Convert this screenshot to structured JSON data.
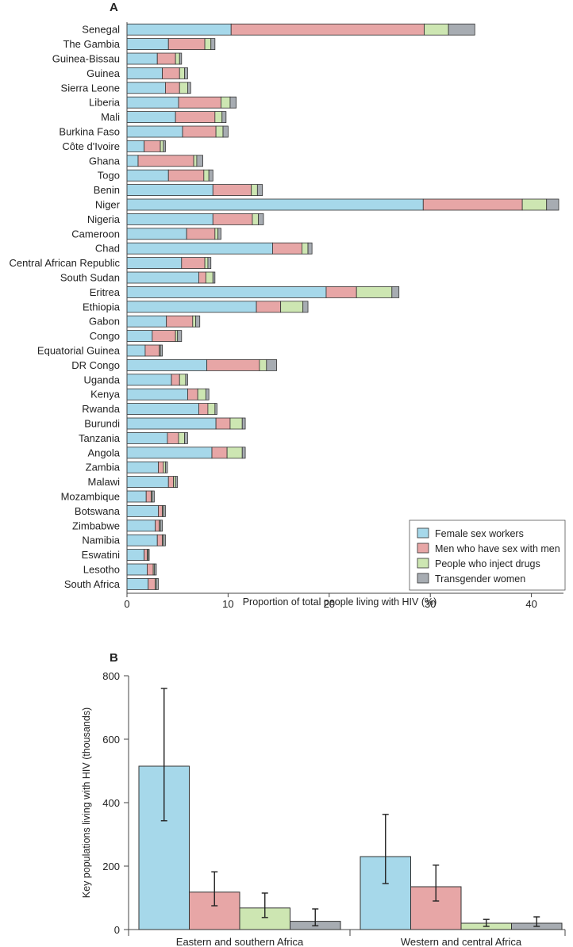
{
  "chart_data": [
    {
      "panel": "A",
      "type": "bar",
      "orientation": "horizontal",
      "stacked": true,
      "xlabel": "Proportion of total people living with HIV (%)",
      "ylabel": "",
      "xlim": [
        0,
        43
      ],
      "xticks": [
        "0",
        "10",
        "20",
        "30",
        "40"
      ],
      "categories": [
        "Senegal",
        "The Gambia",
        "Guinea-Bissau",
        "Guinea",
        "Sierra Leone",
        "Liberia",
        "Mali",
        "Burkina Faso",
        "Côte d'Ivoire",
        "Ghana",
        "Togo",
        "Benin",
        "Niger",
        "Nigeria",
        "Cameroon",
        "Chad",
        "Central African Republic",
        "South Sudan",
        "Eritrea",
        "Ethiopia",
        "Gabon",
        "Congo",
        "Equatorial Guinea",
        "DR Congo",
        "Uganda",
        "Kenya",
        "Rwanda",
        "Burundi",
        "Tanzania",
        "Angola",
        "Zambia",
        "Malawi",
        "Mozambique",
        "Botswana",
        "Zimbabwe",
        "Namibia",
        "Eswatini",
        "Lesotho",
        "South Africa"
      ],
      "series": [
        {
          "name": "Female sex workers",
          "color": "#a6d8ea",
          "values": [
            10.3,
            4.1,
            3.0,
            3.5,
            3.8,
            5.1,
            4.8,
            5.5,
            1.7,
            1.1,
            4.1,
            8.5,
            29.3,
            8.5,
            5.9,
            14.4,
            5.4,
            7.1,
            19.7,
            12.8,
            3.9,
            2.5,
            1.8,
            7.9,
            4.4,
            6.0,
            7.1,
            8.8,
            4.0,
            8.4,
            3.1,
            4.1,
            1.9,
            3.1,
            2.8,
            3.0,
            1.7,
            2.0,
            2.1
          ]
        },
        {
          "name": "Men who have sex with men",
          "color": "#e7a6a6",
          "values": [
            19.1,
            3.6,
            1.8,
            1.7,
            1.4,
            4.2,
            3.9,
            3.3,
            1.6,
            5.5,
            3.5,
            3.8,
            9.8,
            3.9,
            2.8,
            2.9,
            2.3,
            0.7,
            3.0,
            2.4,
            2.6,
            2.3,
            1.4,
            5.2,
            0.8,
            1.0,
            0.9,
            1.4,
            1.1,
            1.5,
            0.5,
            0.5,
            0.5,
            0.4,
            0.4,
            0.5,
            0.3,
            0.6,
            0.7
          ]
        },
        {
          "name": "People who inject drugs",
          "color": "#cde6b2",
          "values": [
            2.4,
            0.6,
            0.4,
            0.5,
            0.8,
            0.9,
            0.7,
            0.7,
            0.3,
            0.3,
            0.5,
            0.6,
            2.4,
            0.6,
            0.3,
            0.6,
            0.3,
            0.7,
            3.5,
            2.2,
            0.3,
            0.2,
            0.1,
            0.7,
            0.6,
            0.8,
            0.7,
            1.2,
            0.6,
            1.5,
            0.2,
            0.2,
            0.1,
            0.1,
            0.1,
            0.1,
            0.1,
            0.1,
            0.1
          ]
        },
        {
          "name": "Transgender women",
          "color": "#a7acb2",
          "values": [
            2.6,
            0.4,
            0.2,
            0.3,
            0.3,
            0.6,
            0.4,
            0.5,
            0.2,
            0.6,
            0.4,
            0.5,
            1.2,
            0.5,
            0.3,
            0.4,
            0.3,
            0.2,
            0.7,
            0.5,
            0.4,
            0.4,
            0.2,
            1.0,
            0.2,
            0.3,
            0.2,
            0.3,
            0.3,
            0.3,
            0.2,
            0.2,
            0.2,
            0.2,
            0.2,
            0.2,
            0.1,
            0.2,
            0.2
          ]
        }
      ],
      "legend_position": "bottom-right"
    },
    {
      "panel": "B",
      "type": "bar",
      "orientation": "vertical",
      "stacked": false,
      "ylabel": "Key populations living with HIV (thousands)",
      "xlabel": "",
      "ylim": [
        0,
        800
      ],
      "yticks": [
        "0",
        "200",
        "400",
        "600",
        "800"
      ],
      "categories": [
        "Eastern and southern Africa",
        "Western and central Africa"
      ],
      "series": [
        {
          "name": "Female sex workers",
          "color": "#a6d8ea",
          "values": [
            515,
            230
          ],
          "ci_low": [
            343,
            145
          ],
          "ci_high": [
            760,
            363
          ]
        },
        {
          "name": "Men who have sex with men",
          "color": "#e7a6a6",
          "values": [
            118,
            135
          ],
          "ci_low": [
            75,
            90
          ],
          "ci_high": [
            182,
            203
          ]
        },
        {
          "name": "People who inject drugs",
          "color": "#cde6b2",
          "values": [
            68,
            20
          ],
          "ci_low": [
            38,
            10
          ],
          "ci_high": [
            115,
            32
          ]
        },
        {
          "name": "Transgender women",
          "color": "#a7acb2",
          "values": [
            26,
            20
          ],
          "ci_low": [
            12,
            10
          ],
          "ci_high": [
            65,
            40
          ]
        }
      ]
    }
  ]
}
